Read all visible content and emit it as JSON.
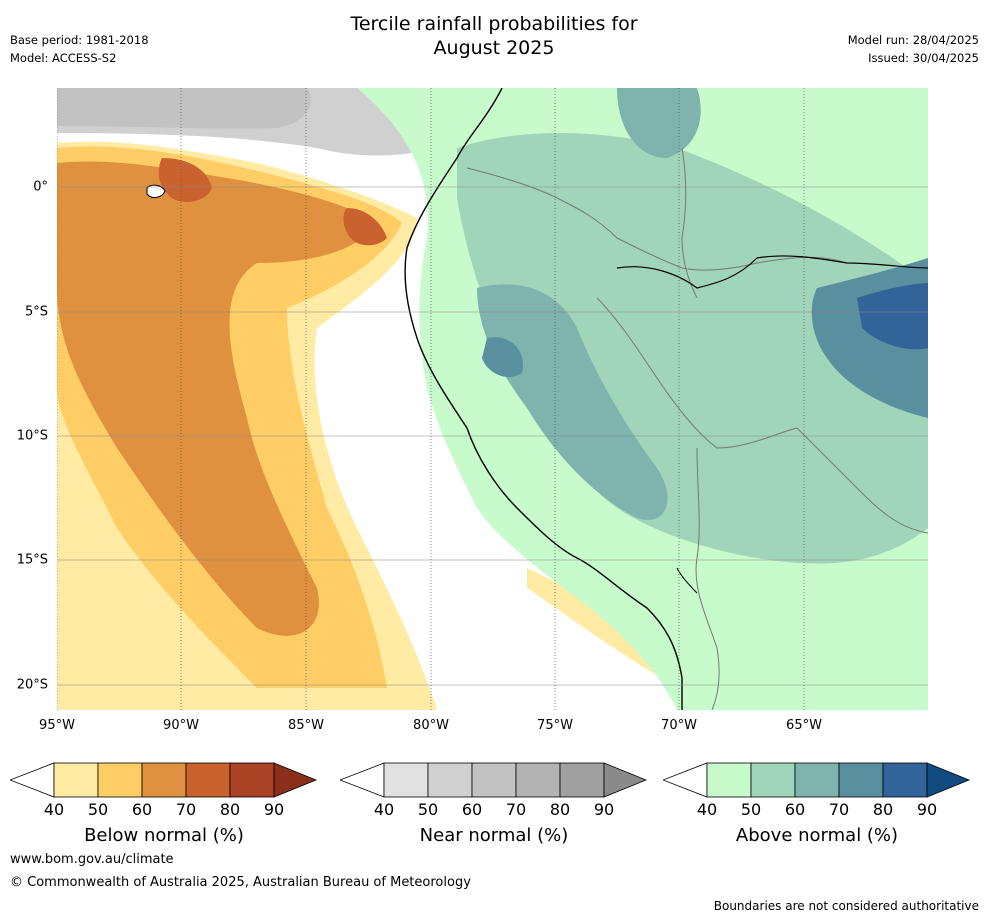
{
  "header": {
    "title_line1": "Tercile rainfall probabilities for",
    "title_line2": "August 2025",
    "base_period": "Base period: 1981-2018",
    "model": "Model: ACCESS-S2",
    "model_run": "Model run: 28/04/2025",
    "issued": "Issued: 30/04/2025"
  },
  "map": {
    "lon_labels": [
      "95°W",
      "90°W",
      "85°W",
      "80°W",
      "75°W",
      "70°W",
      "65°W"
    ],
    "lat_labels": [
      "0°",
      "5°S",
      "10°S",
      "15°S",
      "20°S"
    ],
    "colors": {
      "below": [
        "#ffffff",
        "#ffeba3",
        "#fecd66",
        "#e0913f",
        "#c9622f",
        "#ab4424",
        "#8a2f1a"
      ],
      "near": [
        "#ffffff",
        "#e1e1e1",
        "#d0d0d0",
        "#c2c2c2",
        "#b3b3b3",
        "#a0a0a0",
        "#8a8a8a"
      ],
      "above": [
        "#ffffff",
        "#c8fbcb",
        "#a1d5b9",
        "#7fb3ad",
        "#5a8f9f",
        "#32649a",
        "#124a82"
      ]
    }
  },
  "colorbars": [
    {
      "label": "Below normal (%)",
      "ticks": [
        "40",
        "50",
        "60",
        "70",
        "80",
        "90"
      ]
    },
    {
      "label": "Near normal (%)",
      "ticks": [
        "40",
        "50",
        "60",
        "70",
        "80",
        "90"
      ]
    },
    {
      "label": "Above normal (%)",
      "ticks": [
        "40",
        "50",
        "60",
        "70",
        "80",
        "90"
      ]
    }
  ],
  "footer": {
    "url": "www.bom.gov.au/climate",
    "copyright": "© Commonwealth of Australia 2025, Australian Bureau of Meteorology",
    "disclaimer": "Boundaries are not considered authoritative"
  }
}
